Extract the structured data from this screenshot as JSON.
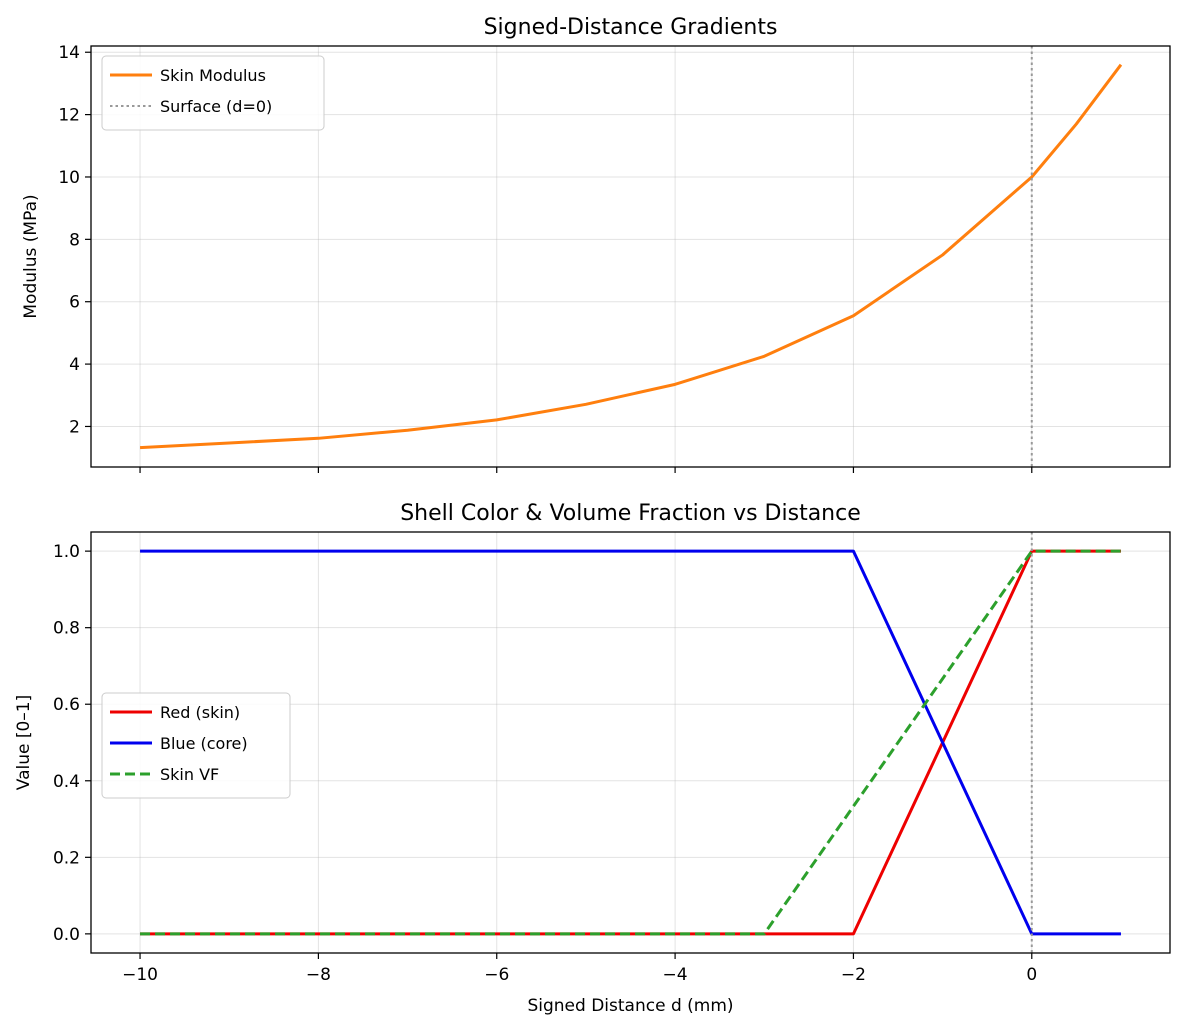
{
  "chart_data": [
    {
      "type": "line",
      "title": "Signed-Distance Gradients",
      "xlabel": "",
      "ylabel": "Modulus (MPa)",
      "xlim": [
        -10.55,
        1.55
      ],
      "ylim": [
        0.7,
        14.2
      ],
      "xticks": [
        -10,
        -8,
        -6,
        -4,
        -2,
        0
      ],
      "xtick_labels_shown": false,
      "yticks": [
        2,
        4,
        6,
        8,
        10,
        12,
        14
      ],
      "grid": true,
      "legend_placement": "upper-left",
      "series": [
        {
          "name": "Skin Modulus",
          "color": "#ff7f0e",
          "style": "solid",
          "x": [
            -10,
            -9,
            -8,
            -7,
            -6,
            -5,
            -4,
            -3,
            -2,
            -1,
            0,
            0.5,
            1
          ],
          "y": [
            1.32,
            1.47,
            1.62,
            1.88,
            2.21,
            2.71,
            3.35,
            4.25,
            5.55,
            7.5,
            10.0,
            11.7,
            13.6
          ]
        },
        {
          "name": "Surface (d=0)",
          "color": "#999999",
          "style": "dotted",
          "kind": "vline",
          "x": 0
        }
      ]
    },
    {
      "type": "line",
      "title": "Shell Color & Volume Fraction vs Distance",
      "xlabel": "Signed Distance d (mm)",
      "ylabel": "Value [0–1]",
      "xlim": [
        -10.55,
        1.55
      ],
      "ylim": [
        -0.05,
        1.05
      ],
      "xticks": [
        -10,
        -8,
        -6,
        -4,
        -2,
        0
      ],
      "xtick_labels": [
        "−10",
        "−8",
        "−6",
        "−4",
        "−2",
        "0"
      ],
      "yticks": [
        0.0,
        0.2,
        0.4,
        0.6,
        0.8,
        1.0
      ],
      "ytick_labels": [
        "0.0",
        "0.2",
        "0.4",
        "0.6",
        "0.8",
        "1.0"
      ],
      "grid": true,
      "legend_placement": "center-left",
      "series": [
        {
          "name": "Red (skin)",
          "color": "#ee0000",
          "style": "solid",
          "x": [
            -10,
            -2,
            0,
            1
          ],
          "y": [
            0,
            0,
            1,
            1
          ]
        },
        {
          "name": "Blue (core)",
          "color": "#0000ee",
          "style": "solid",
          "x": [
            -10,
            -2,
            0,
            1
          ],
          "y": [
            1,
            1,
            0,
            0
          ]
        },
        {
          "name": "Skin VF",
          "color": "#2ca02c",
          "style": "dashed",
          "x": [
            -10,
            -3,
            0,
            1
          ],
          "y": [
            0,
            0,
            1,
            1
          ]
        },
        {
          "name": "",
          "color": "#999999",
          "style": "dotted",
          "kind": "vline",
          "x": 0
        }
      ]
    }
  ]
}
